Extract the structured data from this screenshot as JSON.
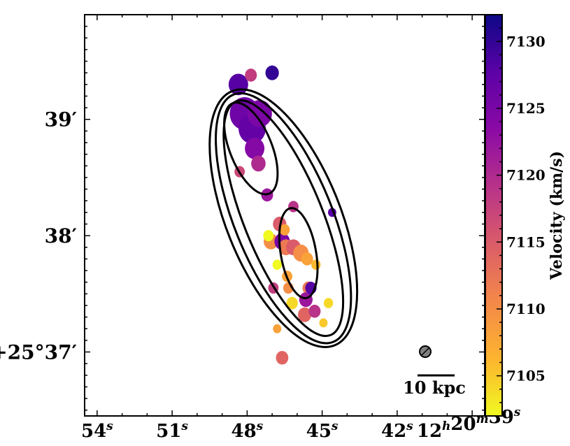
{
  "chart_data": {
    "type": "heatmap",
    "title": "",
    "xlabel": "",
    "ylabel": "",
    "x_axis": {
      "unit": "RA seconds",
      "range": [
        54.5,
        38.5
      ],
      "ticks": [
        {
          "value": 54,
          "main": "54",
          "sup": "s"
        },
        {
          "value": 51,
          "main": "51",
          "sup": "s"
        },
        {
          "value": 48,
          "main": "48",
          "sup": "s"
        },
        {
          "value": 45,
          "main": "45",
          "sup": "s"
        },
        {
          "value": 42,
          "main": "42",
          "sup": "s"
        },
        {
          "value": 39,
          "main": "12",
          "sup": "h",
          "main2": "20",
          "sup2": "m",
          "main3": "39",
          "sup3": "s"
        }
      ]
    },
    "y_axis": {
      "unit": "Dec arcmin offset",
      "range": [
        36.45,
        39.9
      ],
      "ticks": [
        {
          "value": 39,
          "text": "39′"
        },
        {
          "value": 38,
          "text": "38′"
        },
        {
          "value": 37,
          "text": "+25°37′"
        }
      ]
    },
    "colorbar": {
      "label": "Velocity (km/s)",
      "range": [
        7102,
        7132
      ],
      "ticks": [
        7105,
        7110,
        7115,
        7120,
        7125,
        7130
      ],
      "colormap": [
        "#f0f921",
        "#fdb42f",
        "#f48849",
        "#db5c68",
        "#b83289",
        "#8b0aa5",
        "#5c01a6",
        "#0d0887"
      ]
    },
    "scale_bar": {
      "label": "10 kpc"
    },
    "beam": {
      "fill": "#808080"
    },
    "contours": {
      "center": [
        46.55,
        38.15
      ],
      "angle_deg": 68,
      "levels": [
        {
          "rx": 1.36,
          "ry": 5.6,
          "dx": 0.0,
          "dy": 0.0
        },
        {
          "rx": 1.17,
          "ry": 5.45,
          "dx": 0.0,
          "dy": 0.0
        },
        {
          "rx": 0.94,
          "ry": 5.15,
          "dx": 0.0,
          "dy": 0.0
        }
      ],
      "cores": [
        {
          "cx": 47.85,
          "cy": 38.75,
          "rx": 0.5,
          "ry": 1.55,
          "angle_deg": 68
        },
        {
          "cx": 45.95,
          "cy": 37.85,
          "rx": 0.42,
          "ry": 1.45,
          "angle_deg": 80
        }
      ]
    },
    "velocity_clumps": [
      {
        "x": 48.1,
        "y": 39.05,
        "v": 7126,
        "r": 0.5
      },
      {
        "x": 47.8,
        "y": 38.92,
        "v": 7127,
        "r": 0.45
      },
      {
        "x": 47.5,
        "y": 39.05,
        "v": 7125,
        "r": 0.4
      },
      {
        "x": 48.35,
        "y": 39.3,
        "v": 7128,
        "r": 0.3
      },
      {
        "x": 47.7,
        "y": 38.75,
        "v": 7124,
        "r": 0.3
      },
      {
        "x": 47.55,
        "y": 38.62,
        "v": 7120,
        "r": 0.2
      },
      {
        "x": 47.85,
        "y": 39.38,
        "v": 7118,
        "r": 0.15
      },
      {
        "x": 47.0,
        "y": 39.4,
        "v": 7130,
        "r": 0.18
      },
      {
        "x": 47.2,
        "y": 38.35,
        "v": 7122,
        "r": 0.15
      },
      {
        "x": 47.05,
        "y": 37.95,
        "v": 7110,
        "r": 0.2
      },
      {
        "x": 47.15,
        "y": 38.0,
        "v": 7102,
        "r": 0.12
      },
      {
        "x": 46.7,
        "y": 38.1,
        "v": 7115,
        "r": 0.18
      },
      {
        "x": 46.6,
        "y": 37.95,
        "v": 7125,
        "r": 0.22
      },
      {
        "x": 46.45,
        "y": 37.9,
        "v": 7112,
        "r": 0.2
      },
      {
        "x": 46.15,
        "y": 37.9,
        "v": 7115,
        "r": 0.2
      },
      {
        "x": 45.85,
        "y": 37.85,
        "v": 7110,
        "r": 0.22
      },
      {
        "x": 45.6,
        "y": 37.8,
        "v": 7108,
        "r": 0.15
      },
      {
        "x": 46.8,
        "y": 37.75,
        "v": 7102,
        "r": 0.1
      },
      {
        "x": 46.4,
        "y": 37.65,
        "v": 7108,
        "r": 0.12
      },
      {
        "x": 46.95,
        "y": 37.55,
        "v": 7118,
        "r": 0.12
      },
      {
        "x": 46.2,
        "y": 37.42,
        "v": 7104,
        "r": 0.14
      },
      {
        "x": 45.55,
        "y": 37.55,
        "v": 7112,
        "r": 0.15
      },
      {
        "x": 45.65,
        "y": 37.45,
        "v": 7122,
        "r": 0.18
      },
      {
        "x": 45.45,
        "y": 37.55,
        "v": 7128,
        "r": 0.14
      },
      {
        "x": 44.75,
        "y": 37.42,
        "v": 7104,
        "r": 0.1
      },
      {
        "x": 45.7,
        "y": 37.32,
        "v": 7114,
        "r": 0.18
      },
      {
        "x": 45.3,
        "y": 37.35,
        "v": 7119,
        "r": 0.15
      },
      {
        "x": 44.95,
        "y": 37.25,
        "v": 7105,
        "r": 0.08
      },
      {
        "x": 45.25,
        "y": 37.75,
        "v": 7106,
        "r": 0.1
      },
      {
        "x": 46.8,
        "y": 37.2,
        "v": 7108,
        "r": 0.08
      },
      {
        "x": 46.6,
        "y": 36.95,
        "v": 7114,
        "r": 0.16
      },
      {
        "x": 46.5,
        "y": 38.05,
        "v": 7108,
        "r": 0.12
      },
      {
        "x": 46.35,
        "y": 37.55,
        "v": 7110,
        "r": 0.12
      },
      {
        "x": 44.6,
        "y": 38.2,
        "v": 7128,
        "r": 0.08
      },
      {
        "x": 48.3,
        "y": 38.55,
        "v": 7117,
        "r": 0.12
      },
      {
        "x": 46.15,
        "y": 38.25,
        "v": 7119,
        "r": 0.12
      }
    ]
  }
}
